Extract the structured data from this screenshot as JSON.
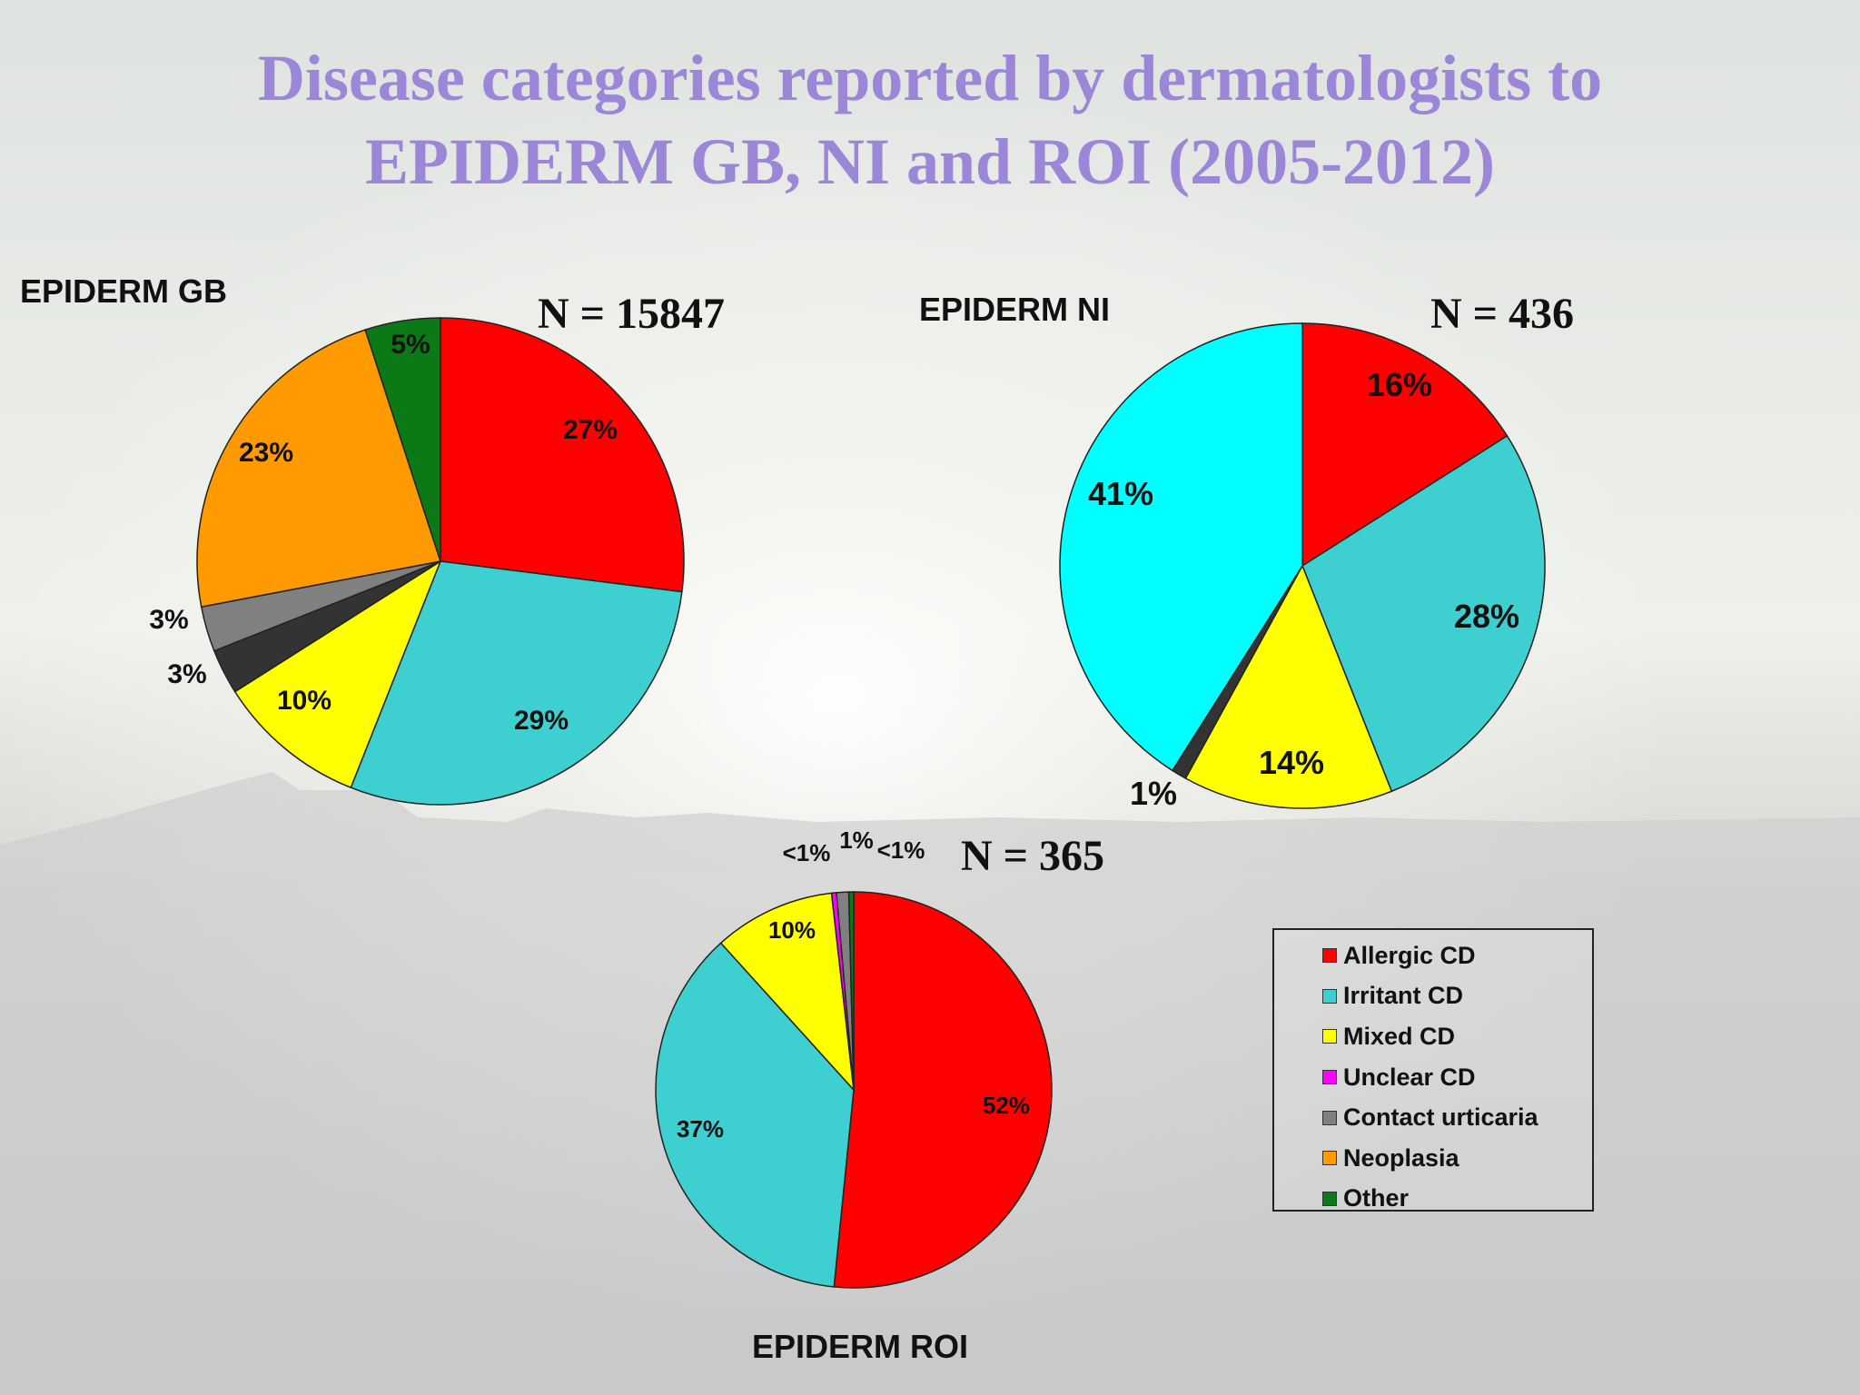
{
  "title_lines": [
    "Disease categories reported by dermatologists to",
    "EPIDERM GB, NI and ROI (2005-2012)"
  ],
  "colors": {
    "Allergic CD": "#ff0000",
    "Irritant CD": "#3ecfd1",
    "Mixed CD": "#ffff00",
    "Unclear CD": "#ff00ff",
    "Contact urticaria": "#808080",
    "Neoplasia": "#ff9a00",
    "Other": "#0b7a16",
    "Dark": "#333333",
    "Cyan": "#00ffff"
  },
  "legend": [
    "Allergic CD",
    "Irritant CD",
    "Mixed CD",
    "Unclear CD",
    "Contact urticaria",
    "Neoplasia",
    "Other"
  ],
  "chart_data": [
    {
      "type": "pie",
      "title": "EPIDERM GB",
      "n_label": "N = 15847",
      "slices": [
        {
          "category": "Allergic CD",
          "value": 27,
          "label": "27%",
          "color": "#ff0000"
        },
        {
          "category": "Irritant CD",
          "value": 29,
          "label": "29%",
          "color": "#3ecfd1"
        },
        {
          "category": "Mixed CD",
          "value": 10,
          "label": "10%",
          "color": "#ffff00"
        },
        {
          "category": "",
          "value": 3,
          "label": "3%",
          "color": "#333333"
        },
        {
          "category": "Contact urticaria",
          "value": 3,
          "label": "3%",
          "color": "#808080"
        },
        {
          "category": "Neoplasia",
          "value": 23,
          "label": "23%",
          "color": "#ff9a00"
        },
        {
          "category": "Other",
          "value": 5,
          "label": "5%",
          "color": "#0b7a16"
        }
      ]
    },
    {
      "type": "pie",
      "title": "EPIDERM NI",
      "n_label": "N = 436",
      "slices": [
        {
          "category": "Allergic CD",
          "value": 16,
          "label": "16%",
          "color": "#ff0000"
        },
        {
          "category": "Irritant CD",
          "value": 28,
          "label": "28%",
          "color": "#3ecfd1"
        },
        {
          "category": "Mixed CD",
          "value": 14,
          "label": "14%",
          "color": "#ffff00"
        },
        {
          "category": "",
          "value": 1,
          "label": "1%",
          "color": "#333333"
        },
        {
          "category": "",
          "value": 41,
          "label": "41%",
          "color": "#00ffff"
        }
      ]
    },
    {
      "type": "pie",
      "title": "EPIDERM ROI",
      "n_label": "N = 365",
      "slices": [
        {
          "category": "Allergic CD",
          "value": 52,
          "label": "52%",
          "color": "#ff0000"
        },
        {
          "category": "Irritant CD",
          "value": 37,
          "label": "37%",
          "color": "#3ecfd1"
        },
        {
          "category": "Mixed CD",
          "value": 10,
          "label": "10%",
          "color": "#ffff00"
        },
        {
          "category": "Unclear CD",
          "value": 0.4,
          "label": "<1%",
          "color": "#ff00ff"
        },
        {
          "category": "Contact urticaria",
          "value": 1,
          "label": "1%",
          "color": "#808080"
        },
        {
          "category": "Other",
          "value": 0.4,
          "label": "<1%",
          "color": "#0b7a16"
        }
      ]
    }
  ]
}
